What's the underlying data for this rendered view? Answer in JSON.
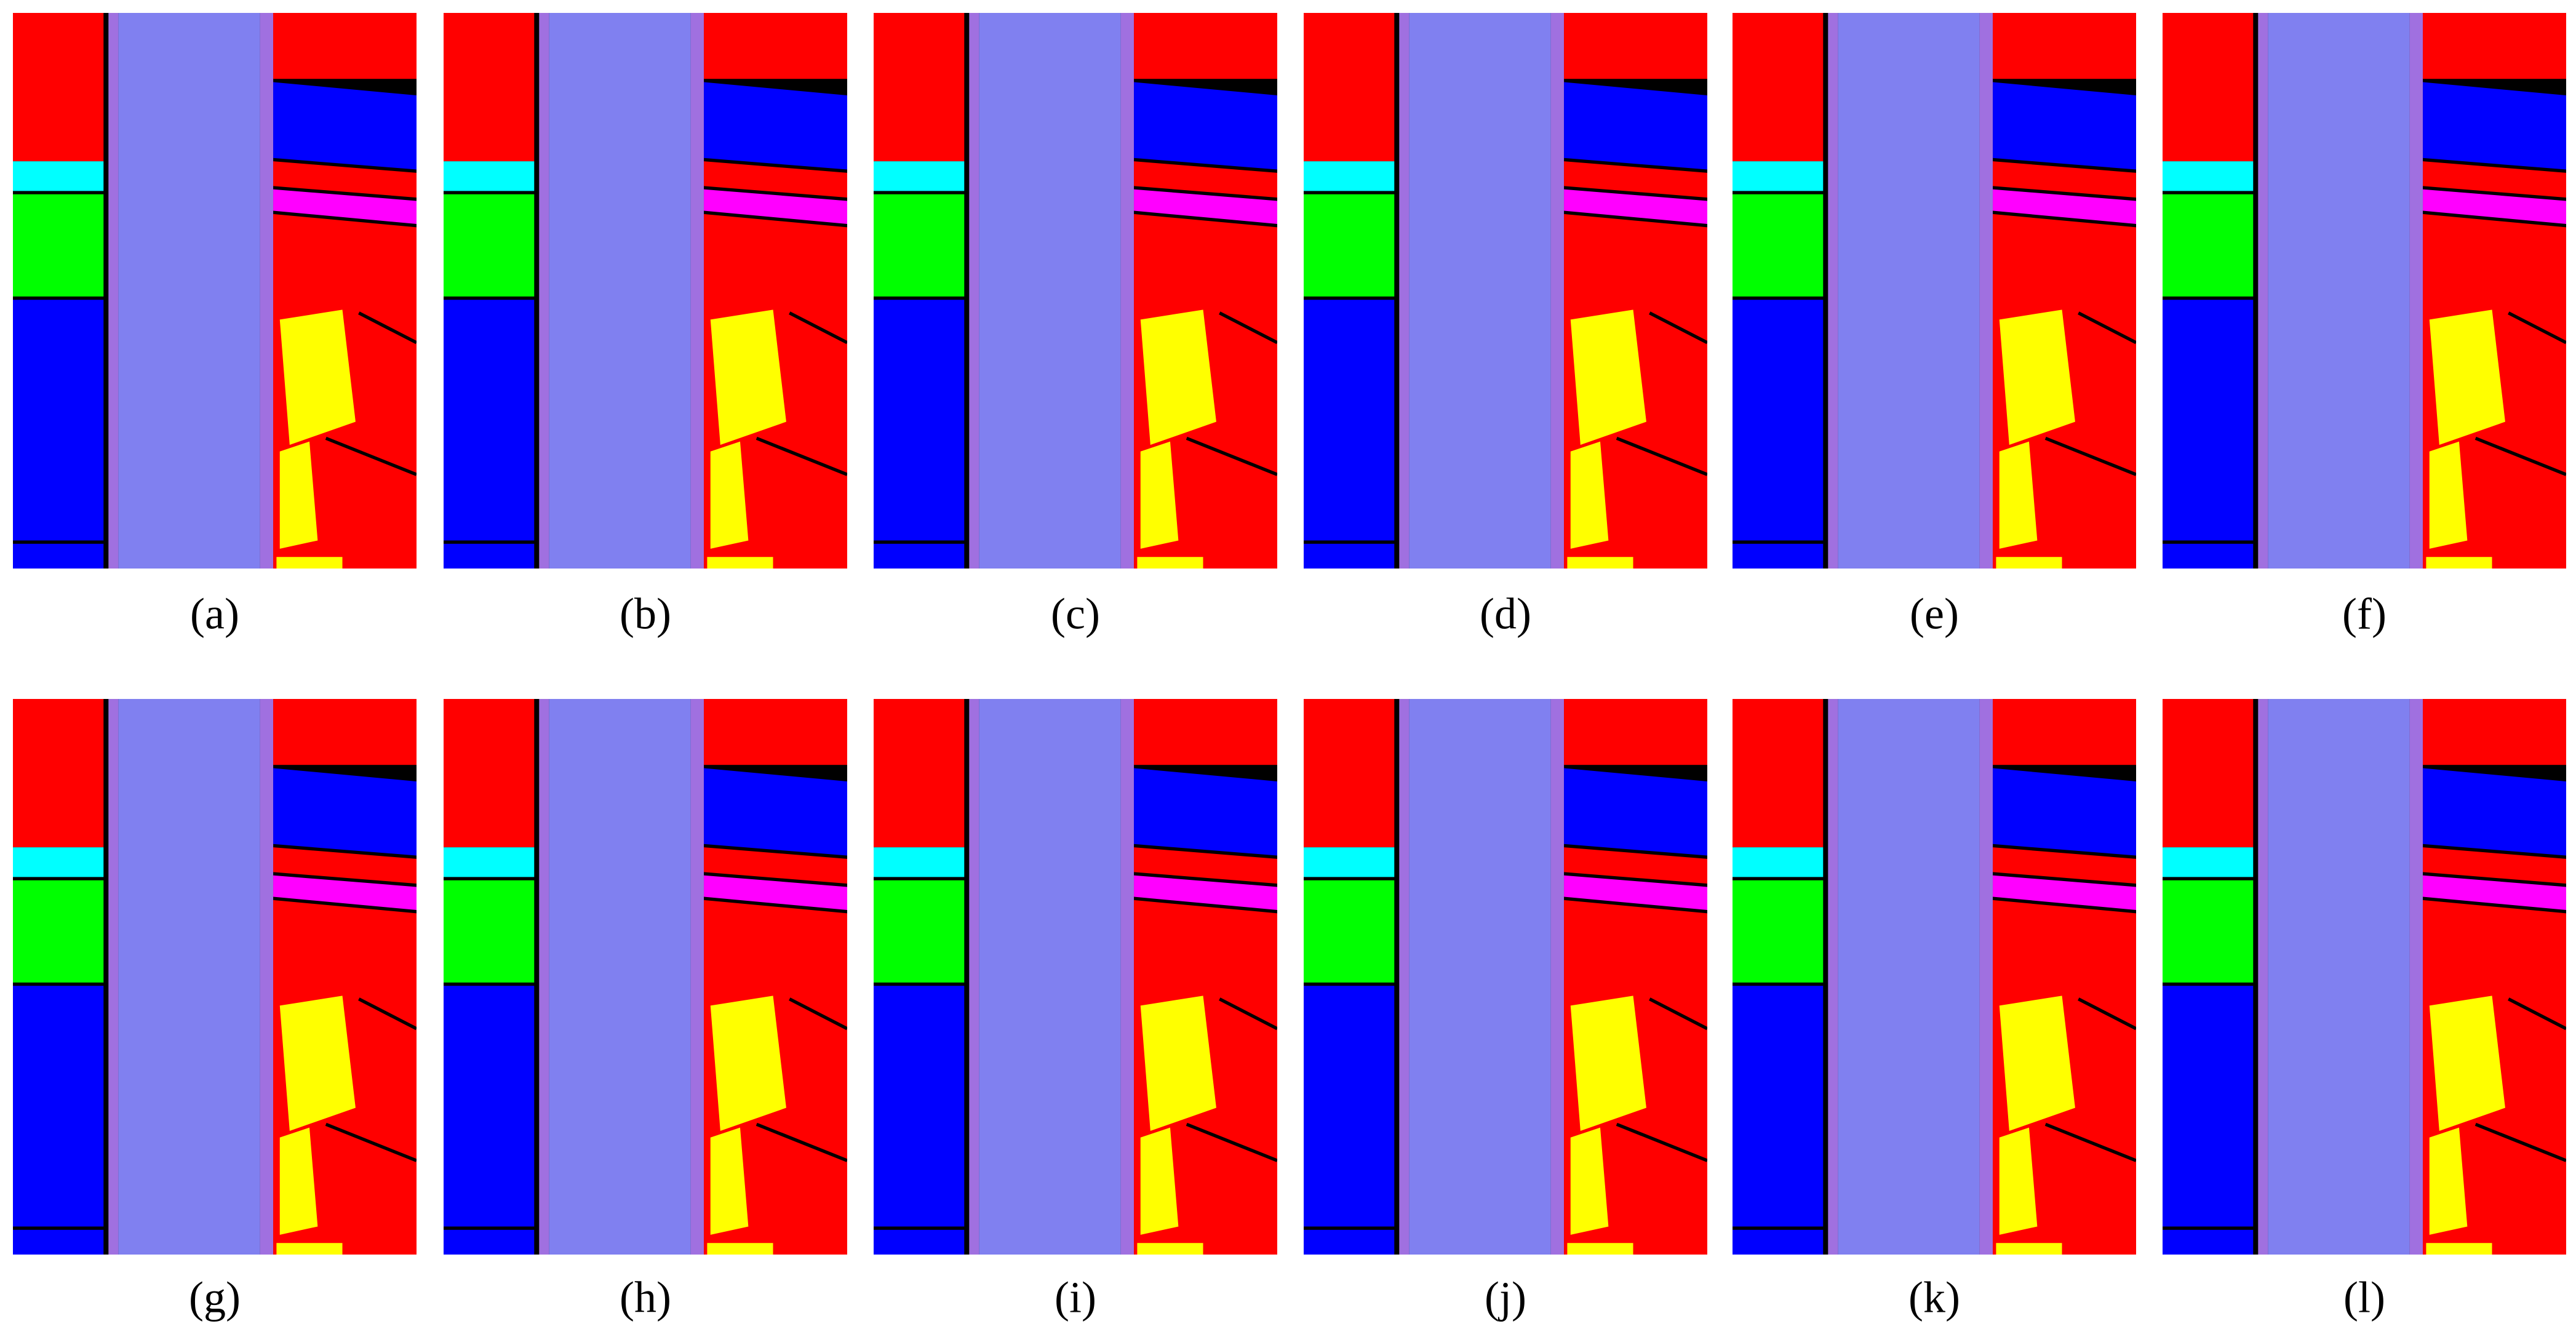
{
  "panels": [
    {
      "label": "(a)"
    },
    {
      "label": "(b)"
    },
    {
      "label": "(c)"
    },
    {
      "label": "(d)"
    },
    {
      "label": "(e)"
    },
    {
      "label": "(f)"
    },
    {
      "label": "(g)"
    },
    {
      "label": "(h)"
    },
    {
      "label": "(i)"
    },
    {
      "label": "(j)"
    },
    {
      "label": "(k)"
    },
    {
      "label": "(l)"
    }
  ]
}
